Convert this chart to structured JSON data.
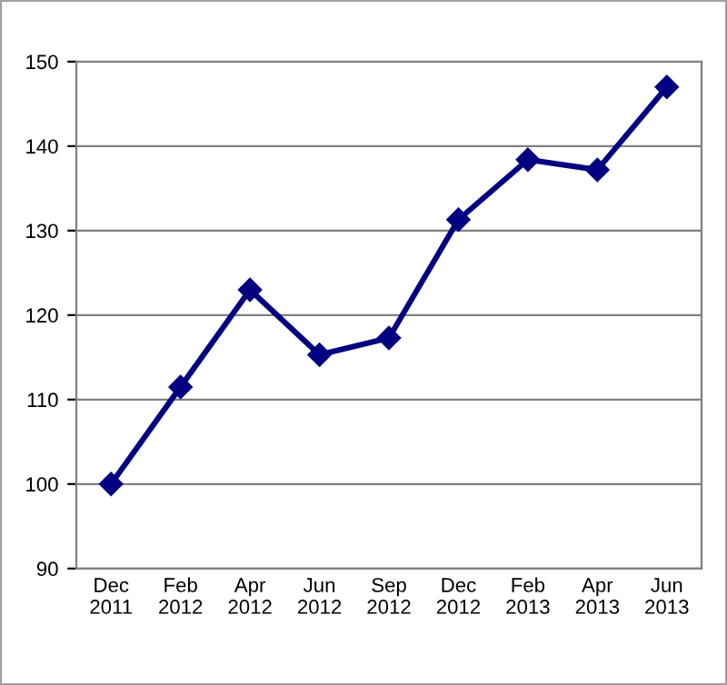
{
  "chart_data": {
    "type": "line",
    "categories": [
      "Dec\n2011",
      "Feb\n2012",
      "Apr\n2012",
      "Jun\n2012",
      "Sep\n2012",
      "Dec\n2012",
      "Feb\n2013",
      "Apr\n2013",
      "Jun\n2013"
    ],
    "series": [
      {
        "color": "#000080",
        "values": [
          100,
          111.5,
          123,
          115.3,
          117.3,
          131.3,
          138.4,
          137.2,
          147
        ]
      }
    ],
    "ylim": [
      90,
      150
    ],
    "yticks": [
      90,
      100,
      110,
      120,
      130,
      140,
      150
    ],
    "grid": "y",
    "marker": "diamond",
    "line_style": "solid",
    "legend": false
  }
}
